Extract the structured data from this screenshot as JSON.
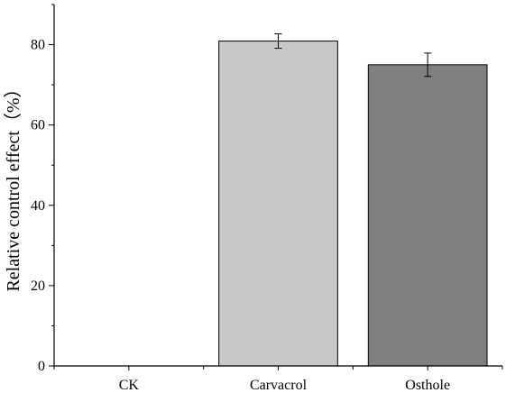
{
  "chart_data": {
    "type": "bar",
    "title": "",
    "xlabel": "",
    "ylabel": "Relative control effect（%）",
    "categories": [
      "CK",
      "Carvacrol",
      "Osthole"
    ],
    "values": [
      0,
      80.9,
      75.0
    ],
    "errors": [
      0,
      1.8,
      2.9
    ],
    "bar_colors": [
      "#ffffff",
      "#c8c8c8",
      "#808080"
    ],
    "ylim": [
      0,
      90
    ],
    "yticks": [
      0,
      20,
      40,
      60,
      80
    ],
    "minor_tick_step": 10,
    "grid": false,
    "legend": "none"
  }
}
